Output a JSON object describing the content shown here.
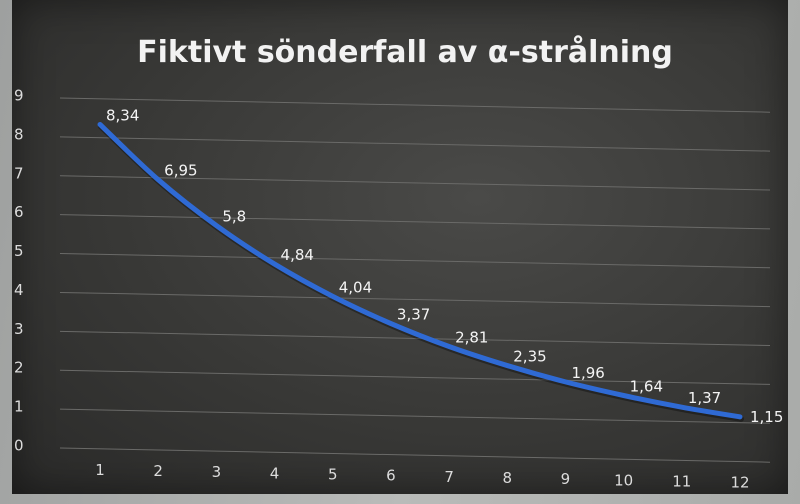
{
  "chart_data": {
    "type": "line",
    "title": "Fiktivt sönderfall av α-strålning",
    "xlabel": "",
    "ylabel": "",
    "x": [
      1,
      2,
      3,
      4,
      5,
      6,
      7,
      8,
      9,
      10,
      11,
      12
    ],
    "y_ticks": [
      "0",
      "1",
      "2",
      "3",
      "4",
      "5",
      "6",
      "7",
      "8",
      "9"
    ],
    "ylim": [
      0,
      9
    ],
    "grid": true,
    "legend": "none",
    "series": [
      {
        "values": [
          8.34,
          6.95,
          5.8,
          4.84,
          4.04,
          3.37,
          2.81,
          2.35,
          1.96,
          1.64,
          1.37,
          1.15
        ],
        "labels": [
          "8,34",
          "6,95",
          "5,8",
          "4,84",
          "4,04",
          "3,37",
          "2,81",
          "2,35",
          "1,96",
          "1,64",
          "1,37",
          "1,15"
        ],
        "color": "#2f6ad4"
      }
    ],
    "colors": {
      "background": "#3c3c3a",
      "grid": "#6a6a68",
      "text": "#dcdcdc"
    }
  }
}
